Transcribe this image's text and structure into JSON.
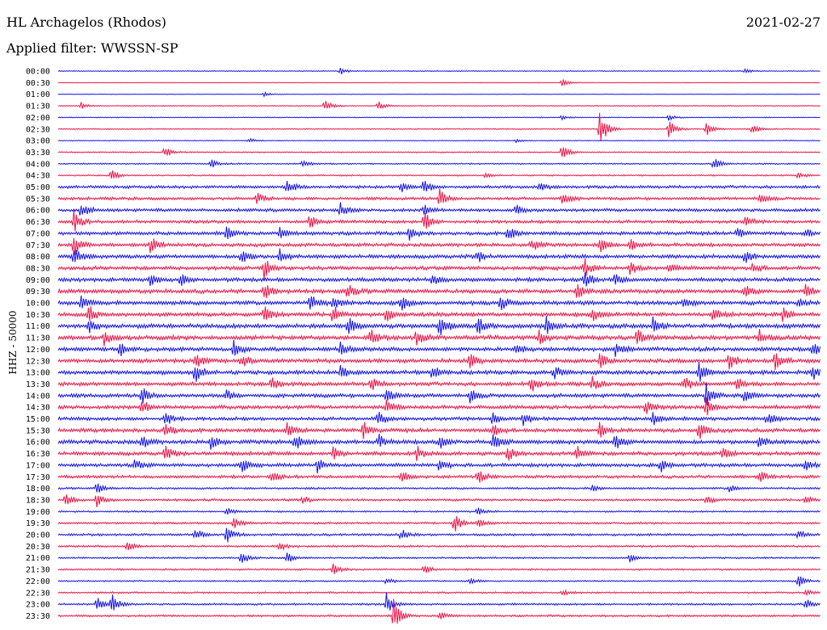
{
  "header": {
    "station": "HL Archagelos (Rhodos)",
    "filter": "Applied filter: WWSSN-SP",
    "date": "2021-02-27"
  },
  "colors": {
    "odd": "#1010ee",
    "even": "#ee1144"
  },
  "chart_data": {
    "type": "line",
    "title": "",
    "ylabel": "HHZ - 50000",
    "xlabel": "",
    "grid": false,
    "legend": "none",
    "rows": [
      {
        "label": "00:00",
        "amp": 0.6,
        "events": [
          [
            0.37,
            1.5
          ],
          [
            0.9,
            1.2
          ]
        ]
      },
      {
        "label": "00:30",
        "amp": 0.4,
        "events": [
          [
            0.66,
            1.8
          ]
        ]
      },
      {
        "label": "01:00",
        "amp": 0.4,
        "events": [
          [
            0.27,
            1.0
          ]
        ]
      },
      {
        "label": "01:30",
        "amp": 0.6,
        "events": [
          [
            0.03,
            1.5
          ],
          [
            0.35,
            3.0
          ],
          [
            0.42,
            2.0
          ]
        ]
      },
      {
        "label": "02:00",
        "amp": 0.6,
        "events": [
          [
            0.66,
            1.0
          ],
          [
            0.8,
            1.5
          ]
        ]
      },
      {
        "label": "02:30",
        "amp": 0.8,
        "events": [
          [
            0.71,
            9.0
          ],
          [
            0.8,
            4.5
          ],
          [
            0.85,
            3.0
          ],
          [
            0.91,
            2.0
          ]
        ]
      },
      {
        "label": "03:00",
        "amp": 0.6,
        "events": [
          [
            0.25,
            1.0
          ],
          [
            0.6,
            0.8
          ]
        ]
      },
      {
        "label": "03:30",
        "amp": 0.8,
        "events": [
          [
            0.14,
            2.5
          ],
          [
            0.66,
            3.5
          ]
        ]
      },
      {
        "label": "04:00",
        "amp": 1.0,
        "events": [
          [
            0.2,
            2.0
          ],
          [
            0.32,
            1.5
          ],
          [
            0.86,
            3.0
          ]
        ]
      },
      {
        "label": "04:30",
        "amp": 1.0,
        "events": [
          [
            0.07,
            2.5
          ],
          [
            0.56,
            1.0
          ],
          [
            0.97,
            1.5
          ]
        ]
      },
      {
        "label": "05:00",
        "amp": 2.0,
        "events": [
          [
            0.3,
            3.0
          ],
          [
            0.45,
            2.5
          ],
          [
            0.48,
            3.5
          ],
          [
            0.63,
            2.0
          ]
        ]
      },
      {
        "label": "05:30",
        "amp": 2.0,
        "events": [
          [
            0.26,
            2.5
          ],
          [
            0.5,
            4.0
          ],
          [
            0.66,
            3.5
          ],
          [
            0.92,
            2.5
          ]
        ]
      },
      {
        "label": "06:00",
        "amp": 2.2,
        "events": [
          [
            0.03,
            3.0
          ],
          [
            0.37,
            3.0
          ],
          [
            0.48,
            2.5
          ],
          [
            0.6,
            2.0
          ]
        ]
      },
      {
        "label": "06:30",
        "amp": 2.2,
        "events": [
          [
            0.02,
            5.0
          ],
          [
            0.33,
            3.0
          ],
          [
            0.48,
            4.5
          ],
          [
            0.9,
            2.5
          ]
        ]
      },
      {
        "label": "07:00",
        "amp": 2.4,
        "events": [
          [
            0.22,
            3.0
          ],
          [
            0.29,
            2.5
          ],
          [
            0.46,
            3.0
          ],
          [
            0.59,
            3.0
          ],
          [
            0.89,
            2.5
          ],
          [
            0.98,
            2.0
          ]
        ]
      },
      {
        "label": "07:30",
        "amp": 2.4,
        "events": [
          [
            0.02,
            5.0
          ],
          [
            0.12,
            4.0
          ],
          [
            0.62,
            3.0
          ],
          [
            0.71,
            3.5
          ],
          [
            0.75,
            2.5
          ]
        ]
      },
      {
        "label": "08:00",
        "amp": 2.6,
        "events": [
          [
            0.02,
            5.0
          ],
          [
            0.24,
            4.0
          ],
          [
            0.29,
            3.5
          ],
          [
            0.55,
            2.5
          ],
          [
            0.9,
            3.0
          ]
        ]
      },
      {
        "label": "08:30",
        "amp": 2.6,
        "events": [
          [
            0.27,
            4.5
          ],
          [
            0.69,
            4.0
          ],
          [
            0.75,
            3.0
          ],
          [
            0.8,
            2.5
          ],
          [
            0.91,
            2.0
          ]
        ]
      },
      {
        "label": "09:00",
        "amp": 2.6,
        "events": [
          [
            0.12,
            3.0
          ],
          [
            0.16,
            2.5
          ],
          [
            0.49,
            3.0
          ],
          [
            0.69,
            3.5
          ],
          [
            0.73,
            3.0
          ]
        ]
      },
      {
        "label": "09:30",
        "amp": 2.8,
        "events": [
          [
            0.27,
            3.5
          ],
          [
            0.38,
            3.0
          ],
          [
            0.68,
            4.0
          ],
          [
            0.9,
            3.0
          ],
          [
            0.98,
            2.5
          ]
        ]
      },
      {
        "label": "10:00",
        "amp": 2.8,
        "events": [
          [
            0.03,
            2.5
          ],
          [
            0.33,
            3.5
          ],
          [
            0.36,
            3.0
          ],
          [
            0.45,
            3.5
          ],
          [
            0.58,
            3.0
          ],
          [
            0.82,
            3.0
          ],
          [
            0.97,
            2.0
          ]
        ]
      },
      {
        "label": "10:30",
        "amp": 2.8,
        "events": [
          [
            0.04,
            4.5
          ],
          [
            0.27,
            3.5
          ],
          [
            0.36,
            4.0
          ],
          [
            0.43,
            3.5
          ],
          [
            0.7,
            3.0
          ],
          [
            0.86,
            3.5
          ],
          [
            0.95,
            3.0
          ]
        ]
      },
      {
        "label": "11:00",
        "amp": 3.0,
        "events": [
          [
            0.04,
            3.0
          ],
          [
            0.38,
            4.0
          ],
          [
            0.5,
            4.5
          ],
          [
            0.55,
            4.0
          ],
          [
            0.64,
            3.5
          ],
          [
            0.78,
            3.5
          ]
        ]
      },
      {
        "label": "11:30",
        "amp": 3.0,
        "events": [
          [
            0.06,
            3.0
          ],
          [
            0.41,
            3.5
          ],
          [
            0.47,
            3.5
          ],
          [
            0.63,
            3.0
          ],
          [
            0.76,
            4.0
          ],
          [
            0.92,
            3.0
          ]
        ]
      },
      {
        "label": "12:00",
        "amp": 2.8,
        "events": [
          [
            0.08,
            3.0
          ],
          [
            0.23,
            3.5
          ],
          [
            0.37,
            3.0
          ],
          [
            0.6,
            3.0
          ],
          [
            0.73,
            3.5
          ],
          [
            0.99,
            2.5
          ]
        ]
      },
      {
        "label": "12:30",
        "amp": 2.8,
        "events": [
          [
            0.18,
            3.5
          ],
          [
            0.24,
            3.0
          ],
          [
            0.54,
            3.0
          ],
          [
            0.71,
            3.5
          ],
          [
            0.88,
            4.0
          ],
          [
            0.94,
            3.5
          ]
        ]
      },
      {
        "label": "13:00",
        "amp": 2.8,
        "events": [
          [
            0.18,
            4.5
          ],
          [
            0.37,
            2.5
          ],
          [
            0.49,
            3.5
          ],
          [
            0.65,
            3.0
          ],
          [
            0.84,
            4.5
          ],
          [
            0.99,
            3.0
          ]
        ]
      },
      {
        "label": "13:30",
        "amp": 2.6,
        "events": [
          [
            0.28,
            3.0
          ],
          [
            0.41,
            3.0
          ],
          [
            0.62,
            3.5
          ],
          [
            0.7,
            3.0
          ],
          [
            0.82,
            4.0
          ],
          [
            0.89,
            3.0
          ]
        ]
      },
      {
        "label": "14:00",
        "amp": 2.6,
        "events": [
          [
            0.11,
            3.5
          ],
          [
            0.22,
            2.5
          ],
          [
            0.43,
            3.0
          ],
          [
            0.54,
            3.0
          ],
          [
            0.85,
            4.5
          ],
          [
            0.9,
            3.0
          ]
        ]
      },
      {
        "label": "14:30",
        "amp": 2.6,
        "events": [
          [
            0.11,
            3.5
          ],
          [
            0.43,
            3.0
          ],
          [
            0.77,
            3.0
          ],
          [
            0.85,
            3.5
          ]
        ]
      },
      {
        "label": "15:00",
        "amp": 2.4,
        "events": [
          [
            0.14,
            3.5
          ],
          [
            0.42,
            3.0
          ],
          [
            0.57,
            3.0
          ],
          [
            0.61,
            3.0
          ],
          [
            0.78,
            3.0
          ],
          [
            0.93,
            2.5
          ]
        ]
      },
      {
        "label": "15:30",
        "amp": 2.6,
        "events": [
          [
            0.14,
            3.5
          ],
          [
            0.3,
            3.0
          ],
          [
            0.4,
            3.5
          ],
          [
            0.57,
            3.0
          ],
          [
            0.71,
            3.0
          ],
          [
            0.84,
            4.0
          ]
        ]
      },
      {
        "label": "16:00",
        "amp": 2.8,
        "events": [
          [
            0.11,
            3.0
          ],
          [
            0.2,
            3.5
          ],
          [
            0.31,
            3.5
          ],
          [
            0.42,
            3.0
          ],
          [
            0.5,
            3.5
          ],
          [
            0.57,
            4.0
          ],
          [
            0.73,
            3.5
          ],
          [
            0.92,
            3.0
          ]
        ]
      },
      {
        "label": "16:30",
        "amp": 2.6,
        "events": [
          [
            0.14,
            3.0
          ],
          [
            0.36,
            3.0
          ],
          [
            0.47,
            3.0
          ],
          [
            0.59,
            3.0
          ],
          [
            0.68,
            3.5
          ],
          [
            0.87,
            3.0
          ]
        ]
      },
      {
        "label": "17:00",
        "amp": 2.4,
        "events": [
          [
            0.1,
            2.5
          ],
          [
            0.24,
            3.0
          ],
          [
            0.34,
            3.0
          ],
          [
            0.5,
            3.0
          ],
          [
            0.79,
            3.0
          ],
          [
            0.98,
            2.5
          ]
        ]
      },
      {
        "label": "17:30",
        "amp": 2.0,
        "events": [
          [
            0.28,
            2.5
          ],
          [
            0.45,
            2.5
          ],
          [
            0.55,
            3.5
          ],
          [
            0.92,
            3.0
          ]
        ]
      },
      {
        "label": "18:00",
        "amp": 1.4,
        "events": [
          [
            0.05,
            2.5
          ],
          [
            0.7,
            1.5
          ],
          [
            0.88,
            1.5
          ]
        ]
      },
      {
        "label": "18:30",
        "amp": 1.6,
        "events": [
          [
            0.01,
            3.0
          ],
          [
            0.05,
            3.0
          ],
          [
            0.32,
            2.0
          ],
          [
            0.85,
            2.0
          ],
          [
            0.98,
            2.0
          ]
        ]
      },
      {
        "label": "19:00",
        "amp": 1.2,
        "events": [
          [
            0.22,
            2.0
          ],
          [
            0.55,
            1.5
          ]
        ]
      },
      {
        "label": "19:30",
        "amp": 1.4,
        "events": [
          [
            0.23,
            2.5
          ],
          [
            0.52,
            4.0
          ],
          [
            0.55,
            2.0
          ]
        ]
      },
      {
        "label": "20:00",
        "amp": 1.6,
        "events": [
          [
            0.18,
            2.5
          ],
          [
            0.22,
            4.0
          ],
          [
            0.45,
            2.5
          ],
          [
            0.97,
            2.0
          ]
        ]
      },
      {
        "label": "20:30",
        "amp": 1.4,
        "events": [
          [
            0.09,
            2.5
          ],
          [
            0.29,
            2.0
          ]
        ]
      },
      {
        "label": "21:00",
        "amp": 1.2,
        "events": [
          [
            0.24,
            3.0
          ],
          [
            0.3,
            2.5
          ],
          [
            0.75,
            1.5
          ]
        ]
      },
      {
        "label": "21:30",
        "amp": 1.2,
        "events": [
          [
            0.36,
            3.0
          ],
          [
            0.48,
            2.0
          ]
        ]
      },
      {
        "label": "22:00",
        "amp": 1.0,
        "events": [
          [
            0.43,
            1.5
          ],
          [
            0.54,
            1.5
          ],
          [
            0.97,
            3.0
          ]
        ]
      },
      {
        "label": "22:30",
        "amp": 1.2,
        "events": [
          [
            0.66,
            1.5
          ],
          [
            0.98,
            1.5
          ]
        ]
      },
      {
        "label": "23:00",
        "amp": 1.4,
        "events": [
          [
            0.05,
            3.0
          ],
          [
            0.07,
            5.0
          ],
          [
            0.43,
            5.0
          ],
          [
            0.98,
            2.5
          ]
        ]
      },
      {
        "label": "23:30",
        "amp": 1.4,
        "events": [
          [
            0.44,
            7.0
          ],
          [
            0.5,
            2.0
          ]
        ]
      }
    ]
  }
}
